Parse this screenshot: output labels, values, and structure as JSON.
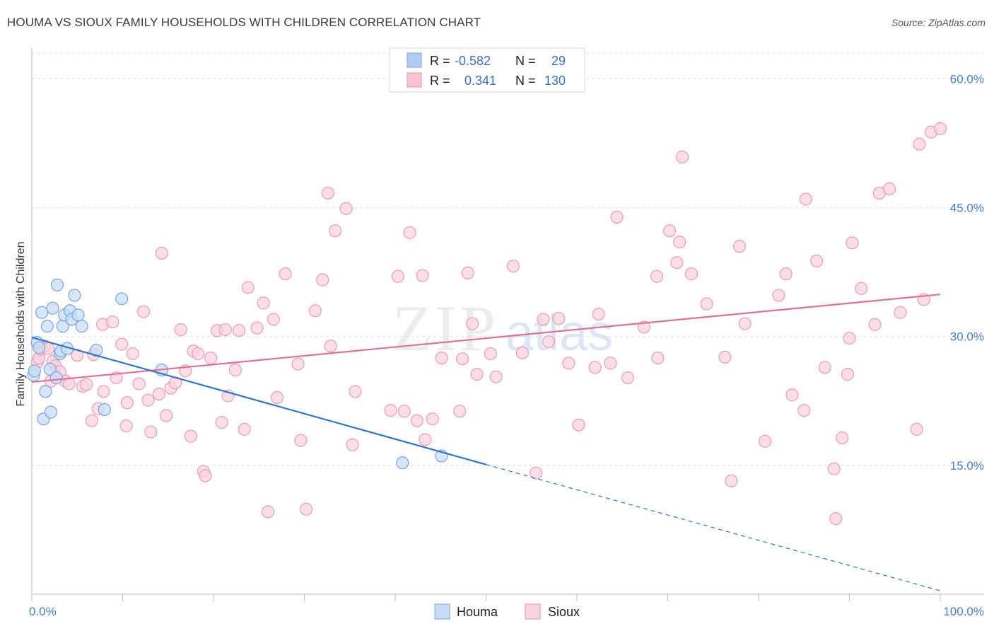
{
  "title": "HOUMA VS SIOUX FAMILY HOUSEHOLDS WITH CHILDREN CORRELATION CHART",
  "source": "Source: ZipAtlas.com",
  "watermark": {
    "zip": "ZIP",
    "atlas": "atlas"
  },
  "legend": {
    "rows": [
      {
        "r_label": "R =",
        "r_value": "-0.582",
        "n_label": "N =",
        "n_value": "29",
        "color": "#b3cdf2",
        "border": "#7aa5e0"
      },
      {
        "r_label": "R =",
        "r_value": "0.341",
        "n_label": "N =",
        "n_value": "130",
        "color": "#f7c3d4",
        "border": "#ea8fae"
      }
    ]
  },
  "bottom_legend": [
    "Houma",
    "Sioux"
  ],
  "colors": {
    "houma_fill": "#c9dcf5",
    "houma_stroke": "#6e9fdc",
    "houma_line": "#2f74cf",
    "sioux_fill": "#f9d3df",
    "sioux_stroke": "#e895b0",
    "sioux_line": "#e26f96",
    "tick": "#4a7cc7",
    "grid": "#dddddd"
  },
  "chart_data": {
    "type": "scatter",
    "title": "HOUMA VS SIOUX FAMILY HOUSEHOLDS WITH CHILDREN CORRELATION CHART",
    "xlabel": "",
    "ylabel": "Family Households with Children",
    "xlim": [
      0,
      100
    ],
    "ylim": [
      0,
      63
    ],
    "x_tick_labels": [
      "0.0%",
      "100.0%"
    ],
    "y_ticks": [
      15,
      30,
      45,
      60
    ],
    "y_tick_labels": [
      "15.0%",
      "30.0%",
      "45.0%",
      "60.0%"
    ],
    "grid": "horizontal dashed",
    "legend_position": "top-center",
    "series": [
      {
        "name": "Houma",
        "points": [
          [
            0.2,
            25.5
          ],
          [
            0.3,
            26.0
          ],
          [
            0.6,
            29.3
          ],
          [
            0.8,
            28.7
          ],
          [
            1.1,
            32.8
          ],
          [
            1.3,
            20.4
          ],
          [
            1.5,
            23.6
          ],
          [
            1.7,
            31.2
          ],
          [
            2.0,
            26.2
          ],
          [
            2.1,
            21.2
          ],
          [
            2.3,
            33.3
          ],
          [
            2.7,
            25.2
          ],
          [
            2.8,
            36.0
          ],
          [
            3.1,
            28.0
          ],
          [
            3.2,
            28.3
          ],
          [
            3.4,
            31.2
          ],
          [
            3.6,
            32.5
          ],
          [
            3.9,
            28.6
          ],
          [
            4.2,
            33.0
          ],
          [
            4.4,
            32.0
          ],
          [
            4.7,
            34.8
          ],
          [
            5.1,
            32.5
          ],
          [
            5.5,
            31.2
          ],
          [
            7.1,
            28.4
          ],
          [
            8.0,
            21.5
          ],
          [
            9.9,
            34.4
          ],
          [
            14.3,
            26.1
          ],
          [
            40.8,
            15.3
          ],
          [
            45.1,
            16.1
          ]
        ],
        "trend": {
          "x": [
            0,
            50
          ],
          "y": [
            29.9,
            15.1
          ]
        },
        "trend_extension": {
          "x": [
            50,
            100
          ],
          "y": [
            15.1,
            0.4
          ]
        }
      },
      {
        "name": "Sioux",
        "points": [
          [
            0.6,
            27.0
          ],
          [
            0.8,
            27.5
          ],
          [
            1.0,
            28.5
          ],
          [
            1.4,
            28.9
          ],
          [
            1.8,
            28.6
          ],
          [
            2.1,
            24.8
          ],
          [
            2.3,
            27.1
          ],
          [
            2.6,
            26.6
          ],
          [
            3.1,
            25.9
          ],
          [
            3.7,
            24.8
          ],
          [
            4.1,
            24.5
          ],
          [
            5.0,
            27.8
          ],
          [
            5.6,
            24.2
          ],
          [
            6.0,
            24.4
          ],
          [
            6.6,
            20.2
          ],
          [
            6.8,
            27.9
          ],
          [
            7.3,
            21.6
          ],
          [
            7.8,
            31.4
          ],
          [
            7.9,
            23.6
          ],
          [
            8.9,
            31.7
          ],
          [
            9.3,
            25.2
          ],
          [
            9.9,
            29.1
          ],
          [
            10.4,
            19.6
          ],
          [
            10.5,
            22.3
          ],
          [
            11.1,
            28.0
          ],
          [
            11.8,
            24.5
          ],
          [
            12.3,
            32.9
          ],
          [
            12.8,
            22.6
          ],
          [
            13.1,
            18.9
          ],
          [
            14.0,
            23.3
          ],
          [
            14.3,
            39.7
          ],
          [
            14.8,
            20.8
          ],
          [
            15.3,
            24.0
          ],
          [
            15.8,
            24.6
          ],
          [
            16.4,
            30.8
          ],
          [
            16.9,
            26.0
          ],
          [
            17.5,
            18.4
          ],
          [
            17.8,
            28.3
          ],
          [
            18.3,
            28.0
          ],
          [
            18.9,
            14.3
          ],
          [
            19.1,
            13.8
          ],
          [
            19.7,
            27.5
          ],
          [
            20.4,
            30.7
          ],
          [
            20.9,
            20.0
          ],
          [
            21.3,
            30.8
          ],
          [
            21.6,
            23.1
          ],
          [
            22.4,
            26.1
          ],
          [
            22.8,
            30.7
          ],
          [
            23.4,
            19.2
          ],
          [
            23.8,
            35.7
          ],
          [
            24.8,
            31.0
          ],
          [
            25.5,
            33.9
          ],
          [
            26.0,
            9.6
          ],
          [
            26.6,
            32.0
          ],
          [
            27.0,
            22.9
          ],
          [
            27.9,
            37.3
          ],
          [
            29.3,
            26.8
          ],
          [
            29.6,
            17.9
          ],
          [
            30.2,
            9.9
          ],
          [
            31.2,
            33.0
          ],
          [
            32.0,
            36.6
          ],
          [
            32.6,
            46.7
          ],
          [
            32.9,
            28.9
          ],
          [
            33.4,
            42.3
          ],
          [
            34.6,
            44.9
          ],
          [
            35.3,
            17.4
          ],
          [
            35.6,
            23.6
          ],
          [
            39.5,
            21.4
          ],
          [
            40.3,
            37.0
          ],
          [
            41.0,
            21.3
          ],
          [
            41.6,
            42.1
          ],
          [
            42.4,
            20.2
          ],
          [
            43.0,
            37.1
          ],
          [
            43.3,
            18.0
          ],
          [
            44.1,
            20.4
          ],
          [
            45.1,
            27.5
          ],
          [
            47.1,
            21.3
          ],
          [
            47.4,
            27.4
          ],
          [
            48.0,
            37.4
          ],
          [
            48.5,
            31.5
          ],
          [
            49.0,
            25.6
          ],
          [
            50.5,
            28.0
          ],
          [
            51.1,
            25.3
          ],
          [
            53.0,
            38.2
          ],
          [
            54.0,
            28.1
          ],
          [
            55.5,
            14.1
          ],
          [
            56.3,
            32.0
          ],
          [
            56.9,
            29.4
          ],
          [
            58.0,
            32.1
          ],
          [
            59.1,
            26.9
          ],
          [
            60.2,
            19.7
          ],
          [
            62.0,
            26.4
          ],
          [
            62.4,
            32.6
          ],
          [
            63.7,
            26.9
          ],
          [
            64.4,
            43.9
          ],
          [
            65.6,
            25.2
          ],
          [
            67.4,
            31.1
          ],
          [
            68.9,
            27.5
          ],
          [
            68.8,
            37.0
          ],
          [
            70.2,
            42.3
          ],
          [
            71.0,
            38.6
          ],
          [
            71.3,
            41.0
          ],
          [
            71.6,
            50.9
          ],
          [
            72.6,
            37.3
          ],
          [
            74.3,
            33.8
          ],
          [
            76.3,
            27.6
          ],
          [
            77.0,
            13.2
          ],
          [
            77.9,
            40.5
          ],
          [
            78.5,
            31.5
          ],
          [
            80.7,
            17.8
          ],
          [
            82.2,
            34.8
          ],
          [
            83.0,
            37.3
          ],
          [
            83.7,
            23.2
          ],
          [
            85.0,
            21.4
          ],
          [
            85.2,
            46.0
          ],
          [
            86.4,
            38.8
          ],
          [
            87.3,
            26.4
          ],
          [
            88.3,
            14.6
          ],
          [
            88.5,
            8.8
          ],
          [
            89.2,
            18.2
          ],
          [
            89.8,
            25.6
          ],
          [
            90.0,
            29.8
          ],
          [
            90.3,
            40.9
          ],
          [
            91.3,
            35.6
          ],
          [
            92.8,
            31.4
          ],
          [
            93.3,
            46.7
          ],
          [
            94.4,
            47.2
          ],
          [
            95.6,
            32.8
          ],
          [
            97.4,
            19.2
          ],
          [
            97.7,
            52.4
          ],
          [
            98.2,
            34.3
          ],
          [
            99.0,
            53.8
          ],
          [
            100.0,
            54.2
          ]
        ],
        "trend": {
          "x": [
            0,
            100
          ],
          "y": [
            24.7,
            34.9
          ]
        }
      }
    ]
  }
}
